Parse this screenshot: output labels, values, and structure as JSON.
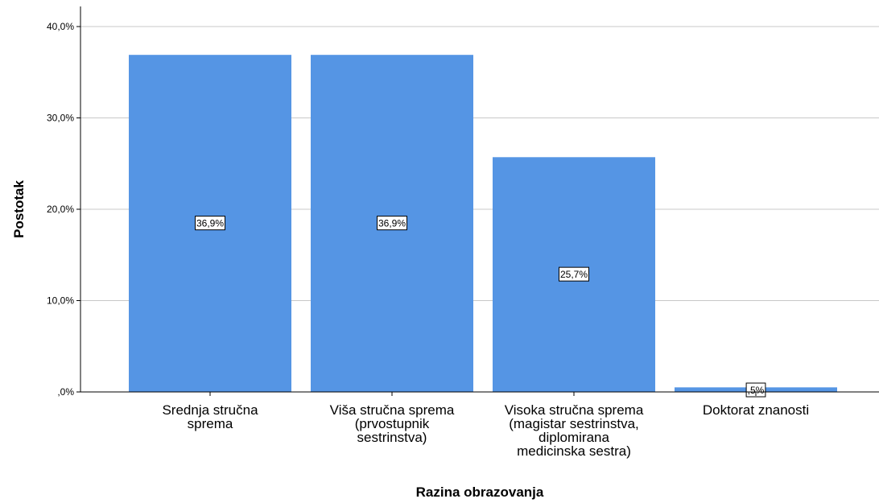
{
  "chart_data": {
    "type": "bar",
    "title": "",
    "xlabel": "Razina obrazovanja",
    "ylabel": "Postotak",
    "ylim": [
      0,
      40
    ],
    "yticks": [
      0,
      10,
      20,
      30,
      40
    ],
    "ytick_labels": [
      ",0%",
      "10,0%",
      "20,0%",
      "30,0%",
      "40,0%"
    ],
    "grid": true,
    "categories": [
      [
        "Srednja stručna",
        "sprema"
      ],
      [
        "Viša stručna sprema",
        "(prvostupnik",
        "sestrinstva)"
      ],
      [
        "Visoka stručna sprema",
        "(magistar sestrinstva,",
        "diplomirana",
        "medicinska sestra)"
      ],
      [
        "Doktorat znanosti"
      ]
    ],
    "values": [
      36.9,
      36.9,
      25.7,
      0.5
    ],
    "data_labels": [
      "36,9%",
      "36,9%",
      "25,7%",
      ",5%"
    ],
    "colors": {
      "bar": "#5595e4",
      "grid": "#c8c8c8",
      "axis": "#000000"
    }
  }
}
